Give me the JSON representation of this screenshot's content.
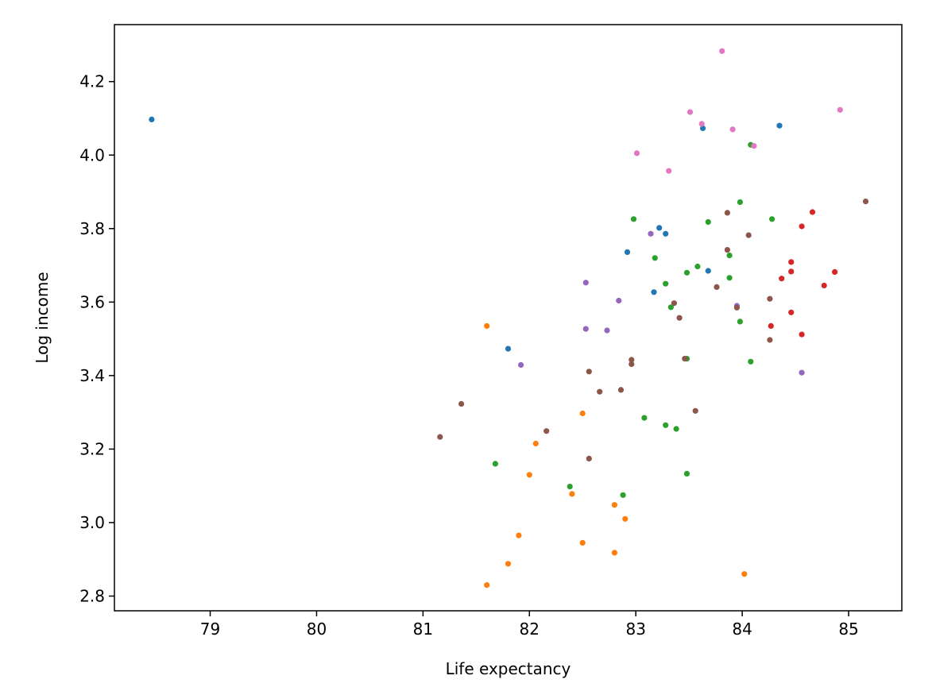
{
  "chart_data": {
    "type": "scatter",
    "title": "",
    "xlabel": "Life expectancy",
    "ylabel": "Log income",
    "xlim": [
      78.1,
      85.5
    ],
    "ylim": [
      2.76,
      4.355
    ],
    "x_ticks": [
      79,
      80,
      81,
      82,
      83,
      84,
      85
    ],
    "y_ticks": [
      2.8,
      3.0,
      3.2,
      3.4,
      3.6,
      3.8,
      4.0,
      4.2
    ],
    "x_tick_labels": [
      "79",
      "80",
      "81",
      "82",
      "83",
      "84",
      "85"
    ],
    "y_tick_labels": [
      "2.8",
      "3.0",
      "3.2",
      "3.4",
      "3.6",
      "3.8",
      "4.0",
      "4.2"
    ],
    "grid": false,
    "legend": "none",
    "series": [
      {
        "color": "#1f77b4",
        "points": [
          [
            78.45,
            4.097
          ],
          [
            81.8,
            3.473
          ],
          [
            82.92,
            3.736
          ],
          [
            83.17,
            3.627
          ],
          [
            83.22,
            3.802
          ],
          [
            83.28,
            3.786
          ],
          [
            83.63,
            4.073
          ],
          [
            83.68,
            3.685
          ],
          [
            84.35,
            4.08
          ]
        ]
      },
      {
        "color": "#ff7f0e",
        "points": [
          [
            81.6,
            3.535
          ],
          [
            81.6,
            2.83
          ],
          [
            81.8,
            2.888
          ],
          [
            81.9,
            2.965
          ],
          [
            82.0,
            3.13
          ],
          [
            82.06,
            3.215
          ],
          [
            82.4,
            3.078
          ],
          [
            82.5,
            3.297
          ],
          [
            82.5,
            2.945
          ],
          [
            82.8,
            3.048
          ],
          [
            82.8,
            2.918
          ],
          [
            82.9,
            3.01
          ],
          [
            84.02,
            2.86
          ]
        ]
      },
      {
        "color": "#2ca02c",
        "points": [
          [
            81.68,
            3.16
          ],
          [
            82.38,
            3.098
          ],
          [
            82.88,
            3.075
          ],
          [
            82.98,
            3.826
          ],
          [
            83.08,
            3.285
          ],
          [
            83.18,
            3.72
          ],
          [
            83.28,
            3.65
          ],
          [
            83.28,
            3.265
          ],
          [
            83.33,
            3.586
          ],
          [
            83.38,
            3.255
          ],
          [
            83.48,
            3.68
          ],
          [
            83.48,
            3.446
          ],
          [
            83.48,
            3.133
          ],
          [
            83.58,
            3.697
          ],
          [
            83.68,
            3.818
          ],
          [
            83.88,
            3.727
          ],
          [
            83.88,
            3.666
          ],
          [
            83.98,
            3.872
          ],
          [
            83.98,
            3.547
          ],
          [
            84.08,
            4.028
          ],
          [
            84.08,
            3.438
          ],
          [
            84.28,
            3.826
          ]
        ]
      },
      {
        "color": "#d62728",
        "points": [
          [
            84.27,
            3.535
          ],
          [
            84.37,
            3.664
          ],
          [
            84.46,
            3.709
          ],
          [
            84.46,
            3.683
          ],
          [
            84.46,
            3.572
          ],
          [
            84.56,
            3.806
          ],
          [
            84.56,
            3.512
          ],
          [
            84.66,
            3.845
          ],
          [
            84.77,
            3.645
          ],
          [
            84.87,
            3.682
          ]
        ]
      },
      {
        "color": "#9467bd",
        "points": [
          [
            81.92,
            3.429
          ],
          [
            82.53,
            3.653
          ],
          [
            82.53,
            3.527
          ],
          [
            82.73,
            3.523
          ],
          [
            82.84,
            3.604
          ],
          [
            83.14,
            3.786
          ],
          [
            83.95,
            3.59
          ],
          [
            84.56,
            3.408
          ]
        ]
      },
      {
        "color": "#8c564b",
        "points": [
          [
            81.16,
            3.233
          ],
          [
            81.36,
            3.323
          ],
          [
            82.16,
            3.249
          ],
          [
            82.56,
            3.411
          ],
          [
            82.56,
            3.174
          ],
          [
            82.66,
            3.356
          ],
          [
            82.86,
            3.361
          ],
          [
            82.96,
            3.443
          ],
          [
            82.96,
            3.431
          ],
          [
            83.36,
            3.597
          ],
          [
            83.41,
            3.557
          ],
          [
            83.46,
            3.446
          ],
          [
            83.56,
            3.304
          ],
          [
            83.76,
            3.641
          ],
          [
            83.86,
            3.843
          ],
          [
            83.86,
            3.742
          ],
          [
            83.95,
            3.585
          ],
          [
            84.06,
            3.782
          ],
          [
            84.26,
            3.609
          ],
          [
            84.26,
            3.497
          ],
          [
            85.16,
            3.874
          ]
        ]
      },
      {
        "color": "#e377c2",
        "points": [
          [
            83.01,
            4.005
          ],
          [
            83.31,
            3.957
          ],
          [
            83.51,
            4.117
          ],
          [
            83.62,
            4.085
          ],
          [
            83.81,
            4.283
          ],
          [
            83.91,
            4.07
          ],
          [
            84.11,
            4.025
          ],
          [
            84.92,
            4.123
          ]
        ]
      }
    ]
  }
}
